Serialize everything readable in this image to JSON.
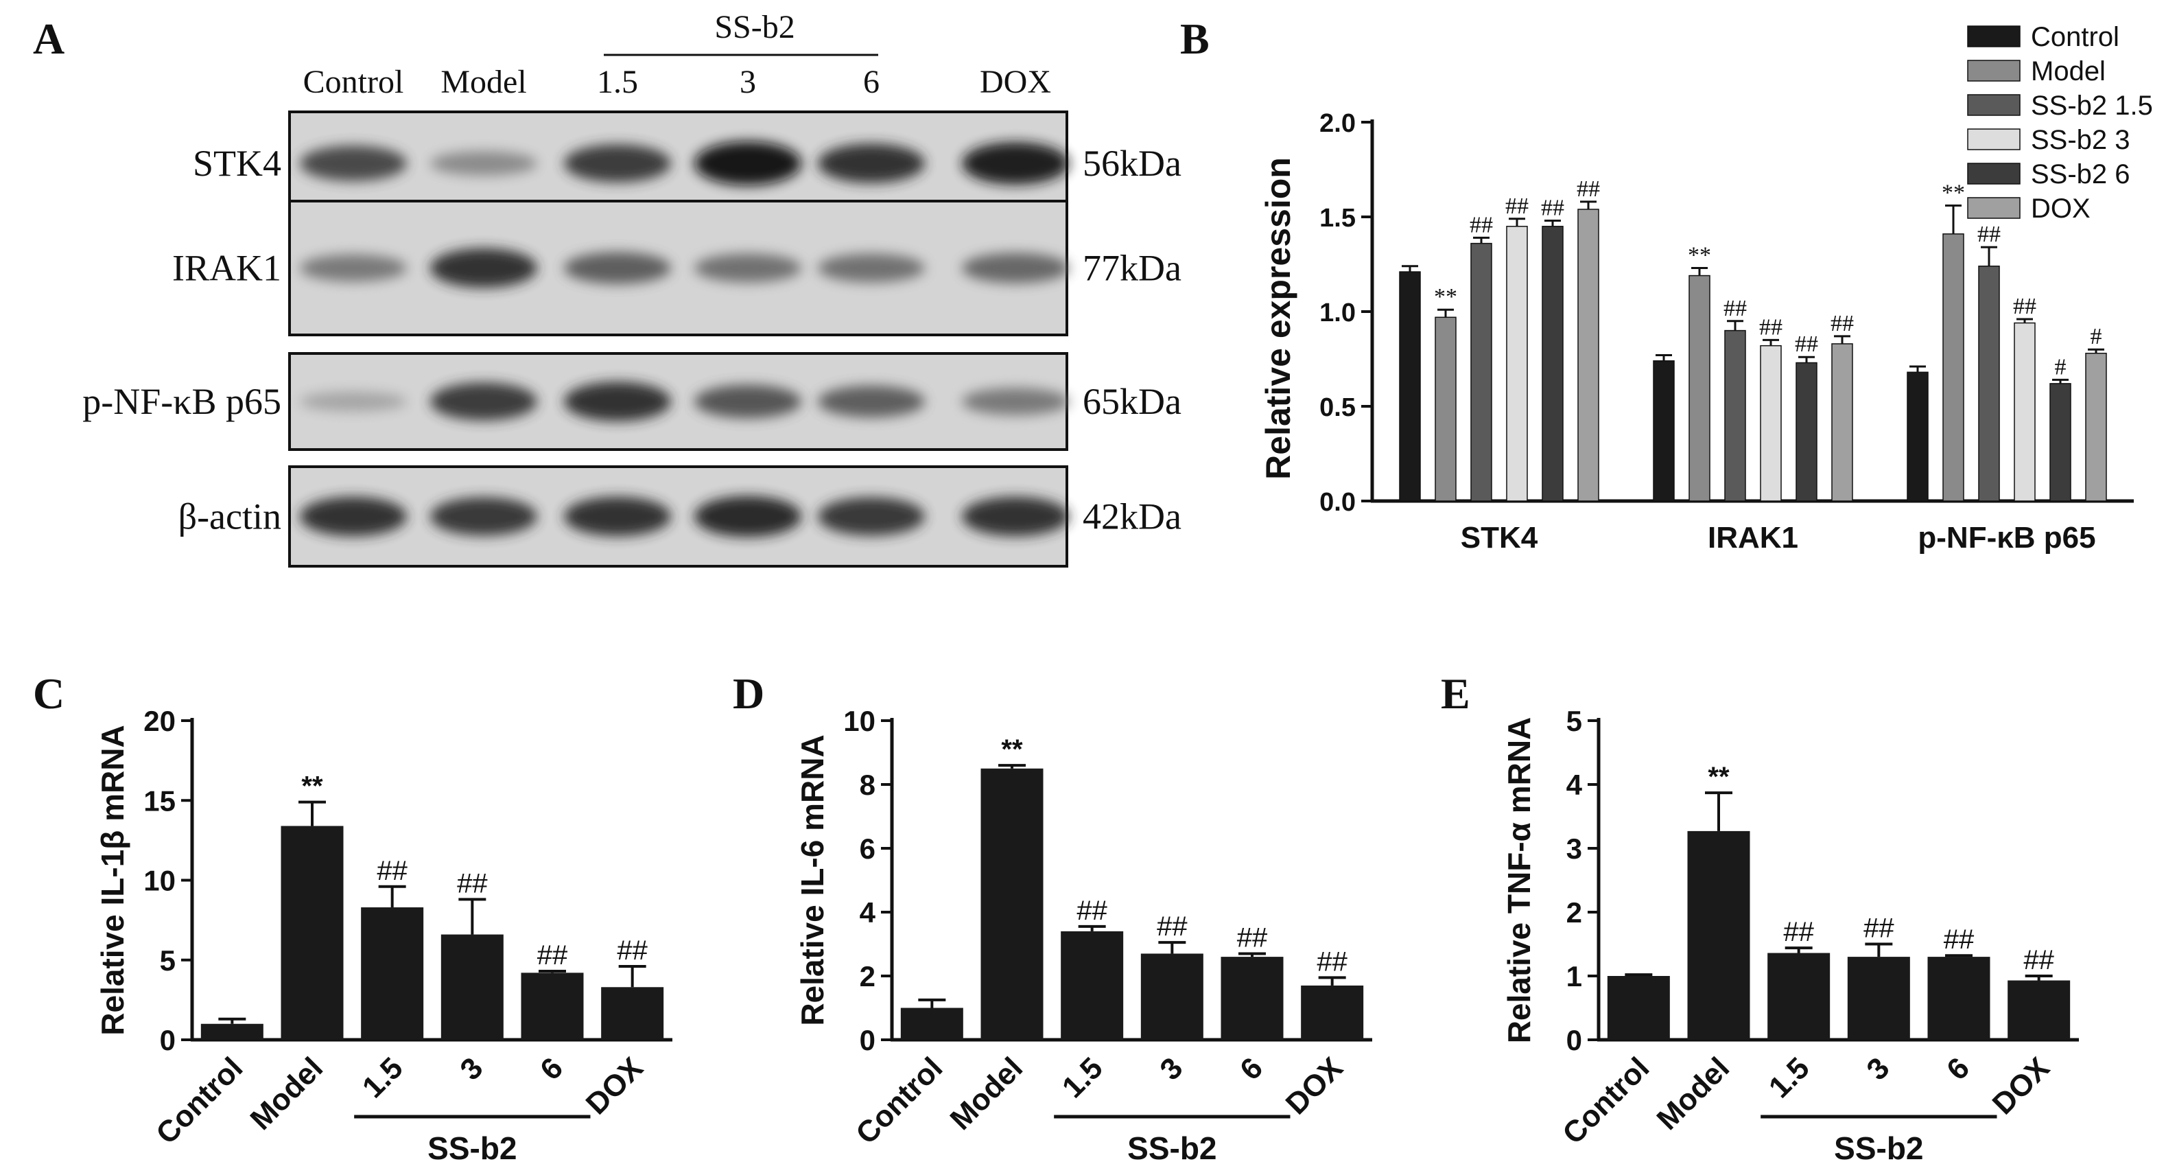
{
  "panel_a": {
    "letter": "A",
    "lanes": [
      "Control",
      "Model",
      "1.5",
      "3",
      "6",
      "DOX"
    ],
    "group_label": "SS-b2",
    "rows": [
      {
        "protein": "STK4",
        "mw": "56kDa",
        "intensity": [
          0.72,
          0.35,
          0.8,
          1.0,
          0.85,
          0.95
        ]
      },
      {
        "protein": "IRAK1",
        "mw": "77kDa",
        "intensity": [
          0.45,
          0.85,
          0.6,
          0.5,
          0.5,
          0.55
        ]
      },
      {
        "protein": "p-NF-κB p65",
        "mw": "65kDa",
        "intensity": [
          0.2,
          0.8,
          0.85,
          0.65,
          0.6,
          0.45
        ]
      },
      {
        "protein": "β-actin",
        "mw": "42kDa",
        "intensity": [
          0.85,
          0.82,
          0.85,
          0.9,
          0.82,
          0.85
        ]
      }
    ]
  },
  "chart_data": [
    {
      "panel": "B",
      "type": "bar",
      "categories": [
        "STK4",
        "IRAK1",
        "p-NF-κB p65"
      ],
      "ylabel": "Relative expression",
      "ylim": [
        0,
        2.0
      ],
      "yticks": [
        "0.0",
        "0.5",
        "1.0",
        "1.5",
        "2.0"
      ],
      "legend_position": "top-right",
      "series": [
        {
          "name": "Control",
          "color": "#1a1a1a",
          "values": [
            1.21,
            0.74,
            0.68
          ],
          "errors": [
            0.03,
            0.03,
            0.03
          ],
          "annotations": [
            "",
            "",
            ""
          ]
        },
        {
          "name": "Model",
          "color": "#8a8a8a",
          "values": [
            0.97,
            1.19,
            1.41
          ],
          "errors": [
            0.04,
            0.04,
            0.15
          ],
          "annotations": [
            "**",
            "**",
            "**"
          ]
        },
        {
          "name": "SS-b2 1.5",
          "color": "#5a5a5a",
          "values": [
            1.36,
            0.9,
            1.24
          ],
          "errors": [
            0.03,
            0.05,
            0.1
          ],
          "annotations": [
            "##",
            "##",
            "##"
          ]
        },
        {
          "name": "SS-b2 3",
          "color": "#dddddd",
          "values": [
            1.45,
            0.82,
            0.94
          ],
          "errors": [
            0.04,
            0.03,
            0.02
          ],
          "annotations": [
            "##",
            "##",
            "##"
          ]
        },
        {
          "name": "SS-b2 6",
          "color": "#3c3c3c",
          "values": [
            1.45,
            0.73,
            0.62
          ],
          "errors": [
            0.03,
            0.03,
            0.02
          ],
          "annotations": [
            "##",
            "##",
            "#"
          ]
        },
        {
          "name": "DOX",
          "color": "#a0a0a0",
          "values": [
            1.54,
            0.83,
            0.78
          ],
          "errors": [
            0.04,
            0.04,
            0.02
          ],
          "annotations": [
            "##",
            "##",
            "#"
          ]
        }
      ]
    },
    {
      "panel": "C",
      "type": "bar",
      "categories": [
        "Control",
        "Model",
        "1.5",
        "3",
        "6",
        "DOX"
      ],
      "group_label": "SS-b2",
      "ylabel": "Relative IL-1β mRNA",
      "ylim": [
        0,
        20
      ],
      "yticks": [
        "0",
        "5",
        "10",
        "15",
        "20"
      ],
      "values": [
        1.0,
        13.4,
        8.3,
        6.6,
        4.2,
        3.3
      ],
      "errors": [
        0.3,
        1.5,
        1.3,
        2.2,
        0.1,
        1.3
      ],
      "annotations": [
        "",
        "**",
        "##",
        "##",
        "##",
        "##"
      ]
    },
    {
      "panel": "D",
      "type": "bar",
      "categories": [
        "Control",
        "Model",
        "1.5",
        "3",
        "6",
        "DOX"
      ],
      "group_label": "SS-b2",
      "ylabel": "Relative IL-6 mRNA",
      "ylim": [
        0,
        10
      ],
      "yticks": [
        "0",
        "2",
        "4",
        "6",
        "8",
        "10"
      ],
      "values": [
        1.0,
        8.5,
        3.4,
        2.7,
        2.6,
        1.7
      ],
      "errors": [
        0.25,
        0.1,
        0.15,
        0.35,
        0.1,
        0.25
      ],
      "annotations": [
        "",
        "**",
        "##",
        "##",
        "##",
        "##"
      ]
    },
    {
      "panel": "E",
      "type": "bar",
      "categories": [
        "Control",
        "Model",
        "1.5",
        "3",
        "6",
        "DOX"
      ],
      "group_label": "SS-b2",
      "ylabel": "Relative TNF-α mRNA",
      "ylim": [
        0,
        5
      ],
      "yticks": [
        "0",
        "1",
        "2",
        "3",
        "4",
        "5"
      ],
      "values": [
        1.0,
        3.27,
        1.36,
        1.3,
        1.3,
        0.93
      ],
      "errors": [
        0.02,
        0.6,
        0.08,
        0.2,
        0.02,
        0.07
      ],
      "annotations": [
        "",
        "**",
        "##",
        "##",
        "##",
        "##"
      ]
    }
  ]
}
